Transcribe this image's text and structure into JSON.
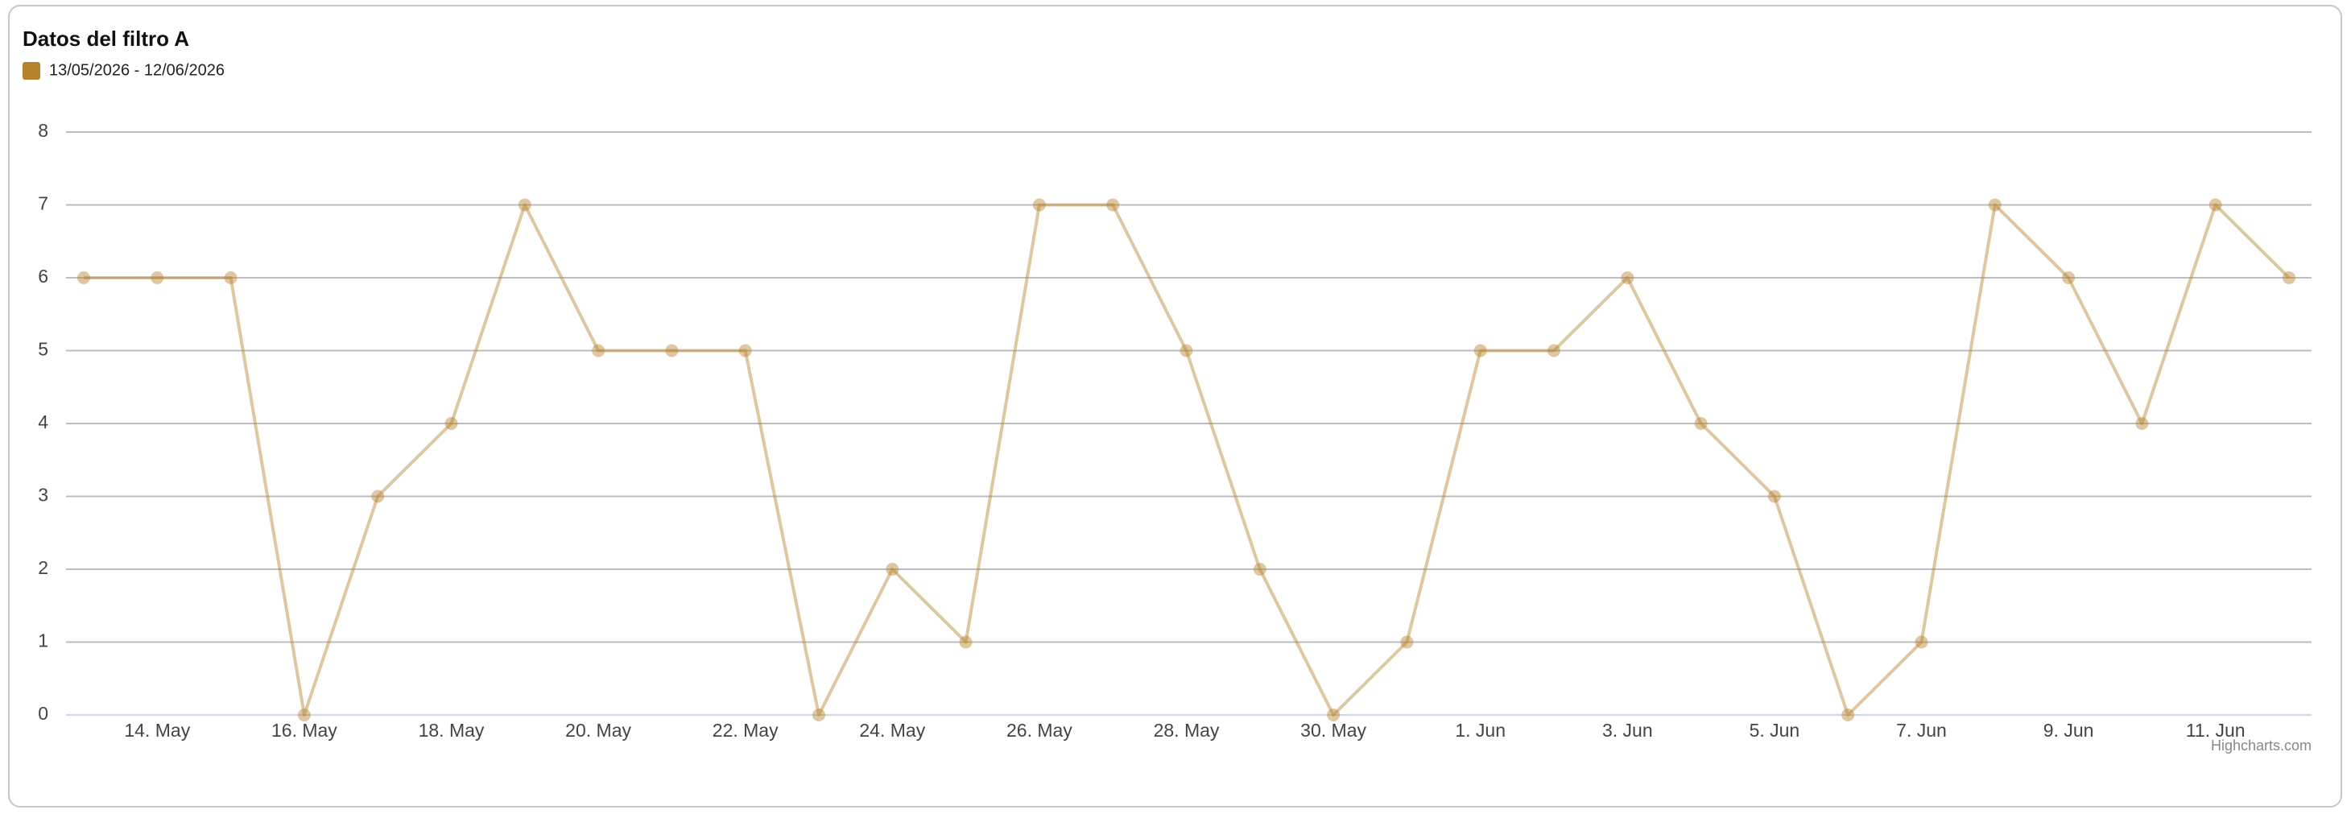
{
  "chart_data": {
    "type": "line",
    "title": "Datos del filtro A",
    "categories": [
      null,
      "14. May",
      null,
      "16. May",
      null,
      "18. May",
      null,
      "20. May",
      null,
      "22. May",
      null,
      "24. May",
      null,
      "26. May",
      null,
      "28. May",
      null,
      "30. May",
      null,
      "1. Jun",
      null,
      "3. Jun",
      null,
      "5. Jun",
      null,
      "7. Jun",
      null,
      "9. Jun",
      null,
      "11. Jun",
      null
    ],
    "series": [
      {
        "name": "13/05/2026 - 12/06/2026",
        "color": "#b5822e",
        "values": [
          6,
          6,
          6,
          0,
          3,
          4,
          7,
          5,
          5,
          5,
          0,
          2,
          1,
          7,
          7,
          5,
          2,
          0,
          1,
          5,
          5,
          6,
          4,
          3,
          0,
          1,
          7,
          6,
          4,
          7,
          6
        ]
      }
    ],
    "ylim": [
      0,
      8
    ],
    "yticks": [
      0,
      1,
      2,
      3,
      4,
      5,
      6,
      7,
      8
    ],
    "grid": true,
    "legend": "top-left",
    "credits": "Highcharts.com"
  }
}
